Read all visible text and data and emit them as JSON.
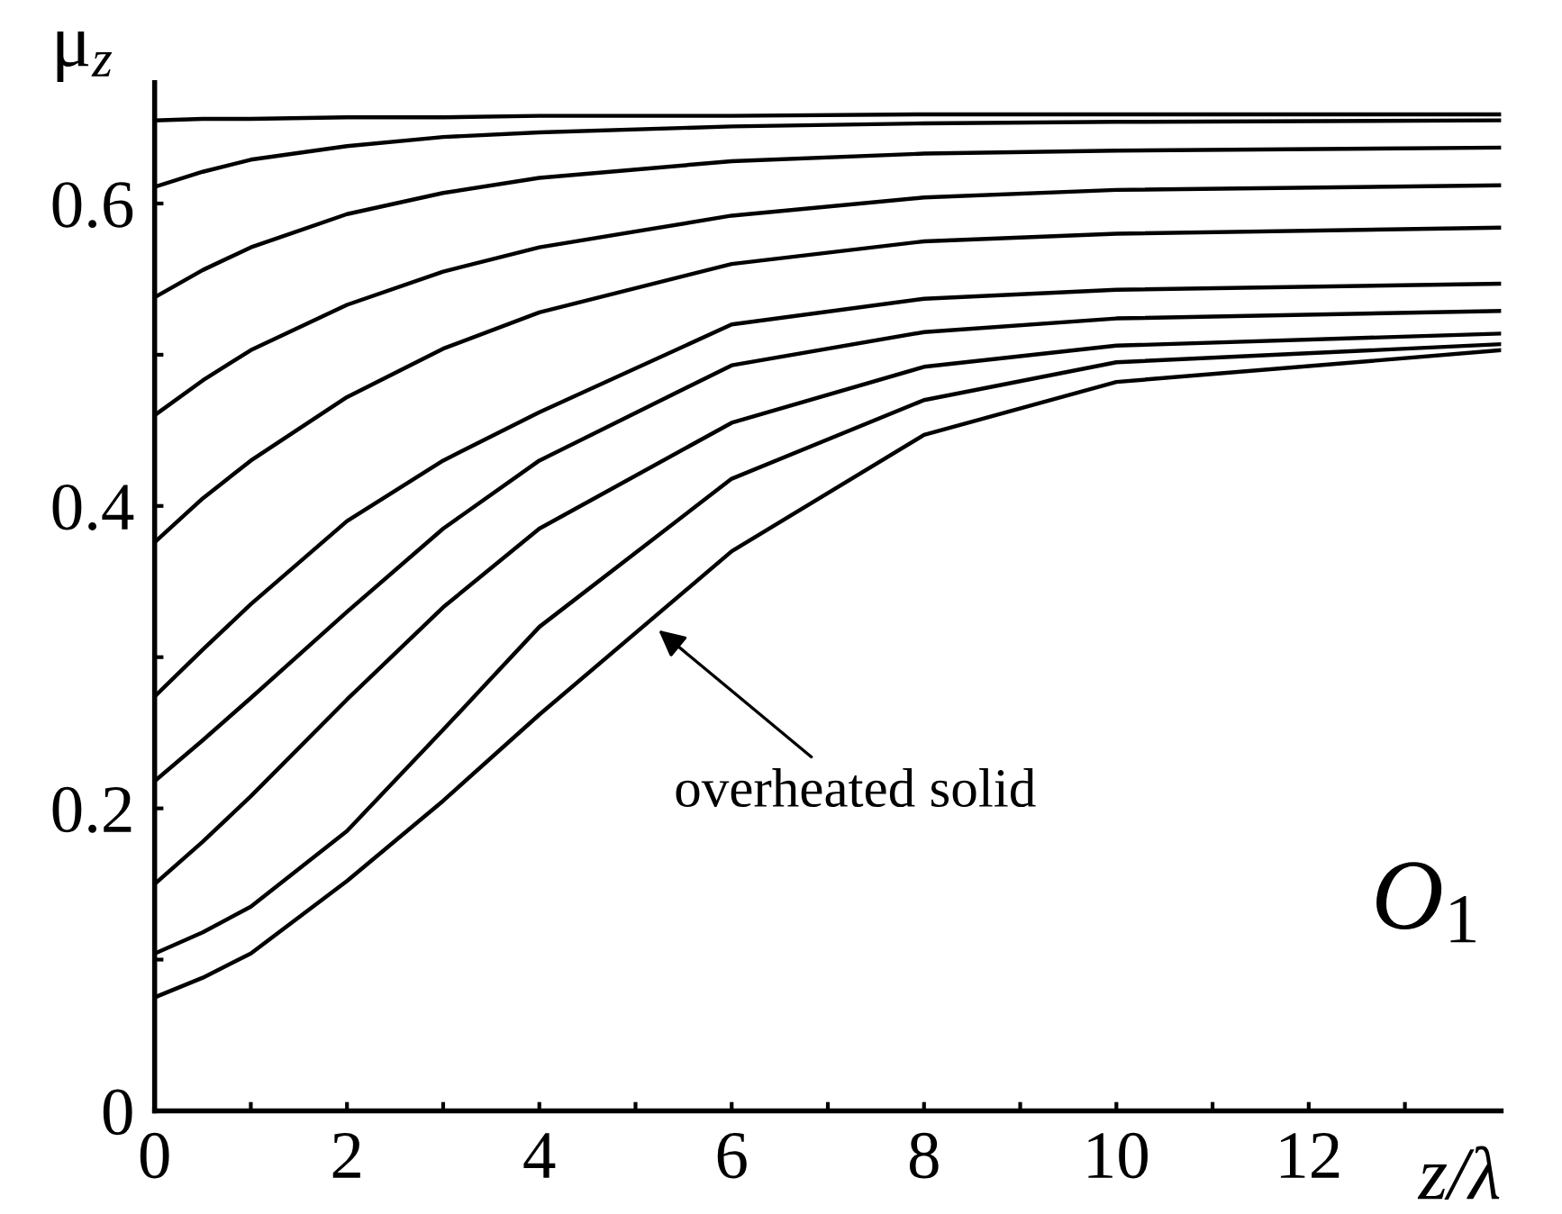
{
  "chart_data": {
    "type": "line",
    "xlabel": "z/λ",
    "ylabel": "μ$_{z}$",
    "x": [
      0,
      0.5,
      1,
      2,
      3,
      4,
      6,
      8,
      10,
      14
    ],
    "series": [
      {
        "color": "#000000",
        "values": [
          0.655,
          0.656,
          0.656,
          0.657,
          0.657,
          0.658,
          0.658,
          0.659,
          0.659,
          0.659
        ]
      },
      {
        "color": "#000000",
        "values": [
          0.611,
          0.621,
          0.629,
          0.638,
          0.644,
          0.647,
          0.651,
          0.653,
          0.654,
          0.655
        ]
      },
      {
        "color": "#000000",
        "values": [
          0.538,
          0.556,
          0.571,
          0.593,
          0.607,
          0.617,
          0.628,
          0.633,
          0.635,
          0.637
        ]
      },
      {
        "color": "#000000",
        "values": [
          0.46,
          0.483,
          0.503,
          0.533,
          0.555,
          0.571,
          0.592,
          0.604,
          0.609,
          0.612
        ]
      },
      {
        "color": "#000000",
        "values": [
          0.376,
          0.405,
          0.43,
          0.472,
          0.504,
          0.528,
          0.56,
          0.575,
          0.58,
          0.584
        ]
      },
      {
        "color": "#000000",
        "values": [
          0.274,
          0.305,
          0.335,
          0.39,
          0.43,
          0.462,
          0.52,
          0.537,
          0.543,
          0.547
        ]
      },
      {
        "color": "#000000",
        "values": [
          0.218,
          0.245,
          0.273,
          0.33,
          0.385,
          0.43,
          0.493,
          0.515,
          0.524,
          0.529
        ]
      },
      {
        "color": "#000000",
        "values": [
          0.15,
          0.178,
          0.208,
          0.272,
          0.333,
          0.385,
          0.455,
          0.492,
          0.506,
          0.514
        ]
      },
      {
        "color": "#000000",
        "values": [
          0.104,
          0.118,
          0.135,
          0.185,
          0.252,
          0.32,
          0.418,
          0.47,
          0.495,
          0.507
        ]
      },
      {
        "color": "#000000",
        "values": [
          0.075,
          0.088,
          0.104,
          0.152,
          0.205,
          0.262,
          0.37,
          0.447,
          0.482,
          0.503
        ]
      }
    ],
    "xlim": [
      0,
      14
    ],
    "ylim": [
      0,
      0.68
    ],
    "xticks": [
      0,
      {
        "value": 1,
        "label": null
      },
      2,
      {
        "value": 3,
        "label": null
      },
      4,
      {
        "value": 5,
        "label": null
      },
      6,
      {
        "value": 7,
        "label": null
      },
      8,
      {
        "value": 9,
        "label": null
      },
      10,
      {
        "value": 11,
        "label": null
      },
      12,
      {
        "value": 13,
        "label": null
      }
    ],
    "yticks": [
      0,
      {
        "value": 0.1,
        "label": null
      },
      0.2,
      {
        "value": 0.3,
        "label": null
      },
      0.4,
      {
        "value": 0.5,
        "label": null
      },
      0.6
    ],
    "annotations": [
      {
        "text": "overheated solid",
        "x": 5.2,
        "y": 0.32
      },
      "O$_{1}$"
    ],
    "grid": false,
    "legend": false,
    "marker": "none",
    "line_style": "solid"
  }
}
